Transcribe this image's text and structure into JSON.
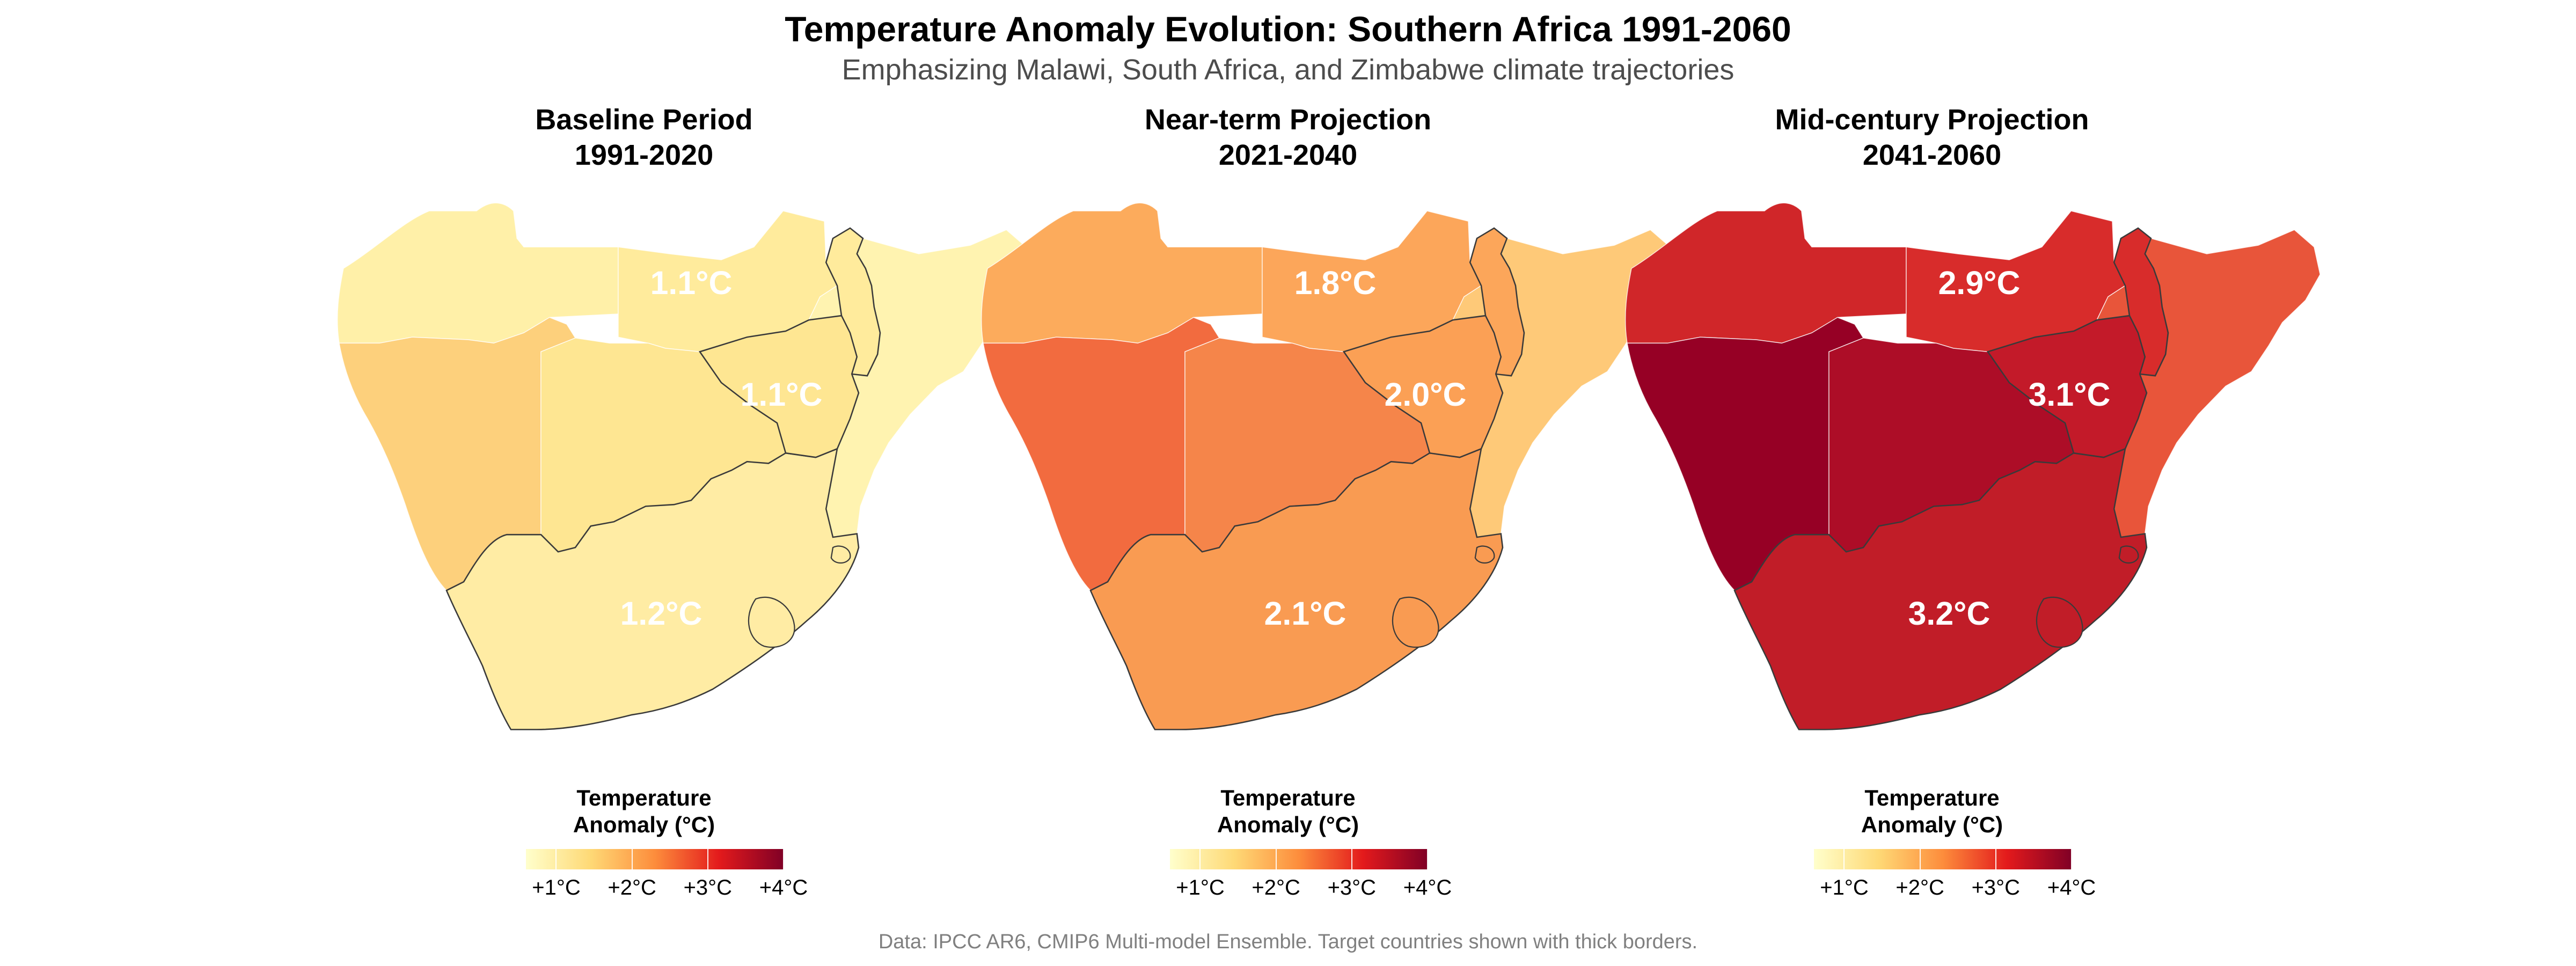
{
  "title": "Temperature Anomaly Evolution: Southern Africa 1991-2060",
  "subtitle": "Emphasizing Malawi, South Africa, and Zimbabwe climate trajectories",
  "caption": "Data: IPCC AR6, CMIP6 Multi-model Ensemble. Target countries shown with thick borders.",
  "legend": {
    "title_line1": "Temperature",
    "title_line2": "Anomaly (°C)",
    "ticks": [
      "+1°C",
      "+2°C",
      "+3°C",
      "+4°C"
    ],
    "colors": [
      "#ffffcc",
      "#fed976",
      "#fd8d3c",
      "#e31a1c",
      "#800026"
    ]
  },
  "chart_data": {
    "type": "choropleth",
    "region": "Southern Africa",
    "unit": "°C",
    "scale_range": [
      0.6,
      4.0
    ],
    "panels": [
      {
        "title_line1": "Baseline Period",
        "title_line2": "1991-2020",
        "labels": {
          "malawi": "1.1°C",
          "zimbabwe": "1.1°C",
          "south_africa": "1.2°C"
        },
        "colors": {
          "angola": "#fff0a8",
          "zambia": "#ffeb9c",
          "malawi": "#ffeb9c",
          "mozambique": "#fff3b0",
          "namibia": "#fdd07c",
          "botswana": "#fee692",
          "zimbabwe": "#fee692",
          "south_africa": "#ffeca4"
        }
      },
      {
        "title_line1": "Near-term Projection",
        "title_line2": "2021-2040",
        "labels": {
          "malawi": "1.8°C",
          "zimbabwe": "2.0°C",
          "south_africa": "2.1°C"
        },
        "colors": {
          "angola": "#fcab5c",
          "zambia": "#fca65a",
          "malawi": "#fca65a",
          "mozambique": "#fec978",
          "namibia": "#f26b3f",
          "botswana": "#f5854a",
          "zimbabwe": "#fba055",
          "south_africa": "#f99b52"
        }
      },
      {
        "title_line1": "Mid-century Projection",
        "title_line2": "2041-2060",
        "labels": {
          "malawi": "2.9°C",
          "zimbabwe": "3.1°C",
          "south_africa": "3.2°C"
        },
        "colors": {
          "angola": "#d02629",
          "zambia": "#d82c2b",
          "malawi": "#d82c2b",
          "mozambique": "#e8553a",
          "namibia": "#960025",
          "botswana": "#ad0d27",
          "zimbabwe": "#c31a29",
          "south_africa": "#c11d28"
        }
      }
    ]
  }
}
